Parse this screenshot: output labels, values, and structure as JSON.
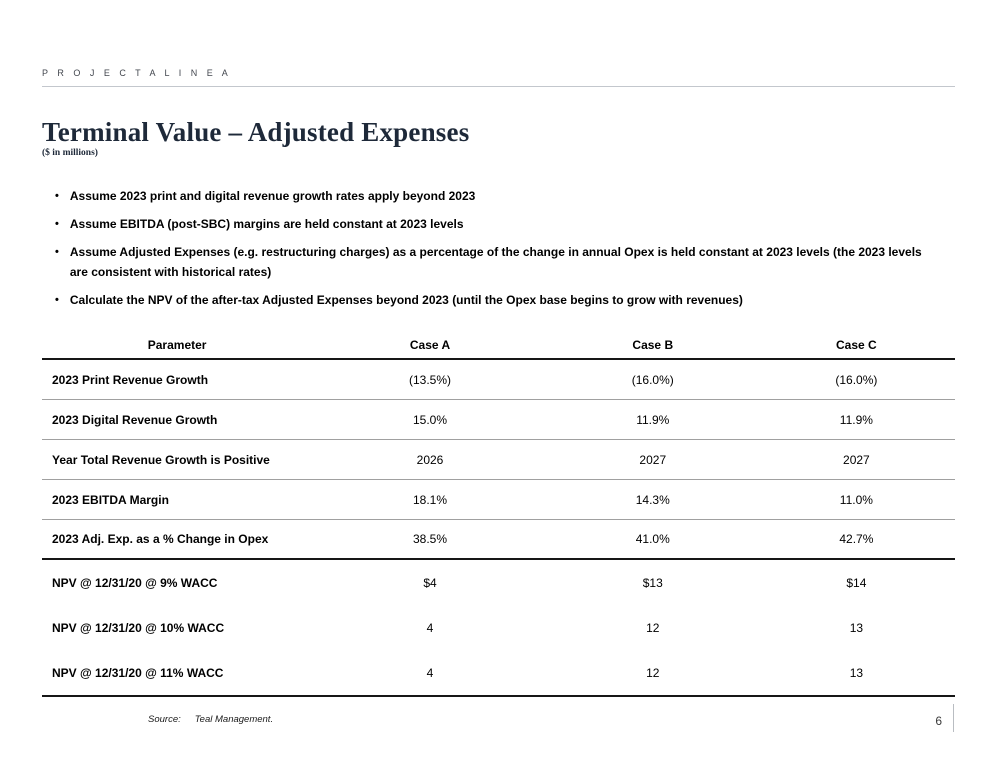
{
  "header": {
    "project_label": "P R O J E C T   A L I N E A"
  },
  "title": {
    "text": "Terminal Value – Adjusted Expenses",
    "subtitle": "($ in millions)"
  },
  "bullets": [
    "Assume 2023 print and digital revenue growth rates apply beyond 2023",
    "Assume EBITDA (post-SBC) margins are held constant at 2023 levels",
    "Assume Adjusted Expenses (e.g. restructuring charges) as a percentage of the change in annual Opex is held constant at 2023 levels (the 2023 levels are consistent with historical rates)",
    "Calculate the NPV of the after-tax Adjusted Expenses beyond 2023 (until the Opex base begins to grow with revenues)"
  ],
  "table": {
    "columns": [
      "Parameter",
      "Case A",
      "Case B",
      "Case C"
    ],
    "rows": [
      {
        "label": "2023 Print Revenue Growth",
        "values": [
          "(13.5%)",
          "(16.0%)",
          "(16.0%)"
        ],
        "section": "assumptions"
      },
      {
        "label": "2023 Digital Revenue Growth",
        "values": [
          "15.0%",
          "11.9%",
          "11.9%"
        ],
        "section": "assumptions"
      },
      {
        "label": "Year Total Revenue Growth is Positive",
        "values": [
          "2026",
          "2027",
          "2027"
        ],
        "section": "assumptions"
      },
      {
        "label": "2023 EBITDA Margin",
        "values": [
          "18.1%",
          "14.3%",
          "11.0%"
        ],
        "section": "assumptions"
      },
      {
        "label": "2023 Adj. Exp. as a % Change in Opex",
        "values": [
          "38.5%",
          "41.0%",
          "42.7%"
        ],
        "section": "assumptions"
      },
      {
        "label": "NPV @ 12/31/20 @ 9% WACC",
        "values": [
          "$4",
          "$13",
          "$14"
        ],
        "section": "npv"
      },
      {
        "label": "NPV @ 12/31/20 @ 10% WACC",
        "values": [
          "4",
          "12",
          "13"
        ],
        "section": "npv"
      },
      {
        "label": "NPV @ 12/31/20 @ 11% WACC",
        "values": [
          "4",
          "12",
          "13"
        ],
        "section": "npv"
      }
    ]
  },
  "footer": {
    "source_label": "Source:",
    "source_text": "Teal Management.",
    "page_number": "6"
  },
  "colors": {
    "title": "#1e2939",
    "header_rule": "#c3c7cd",
    "separator_gray": "#a0a0a0",
    "separator_black": "#161616",
    "project_label": "#42464e"
  },
  "bullet_glyph": "•"
}
